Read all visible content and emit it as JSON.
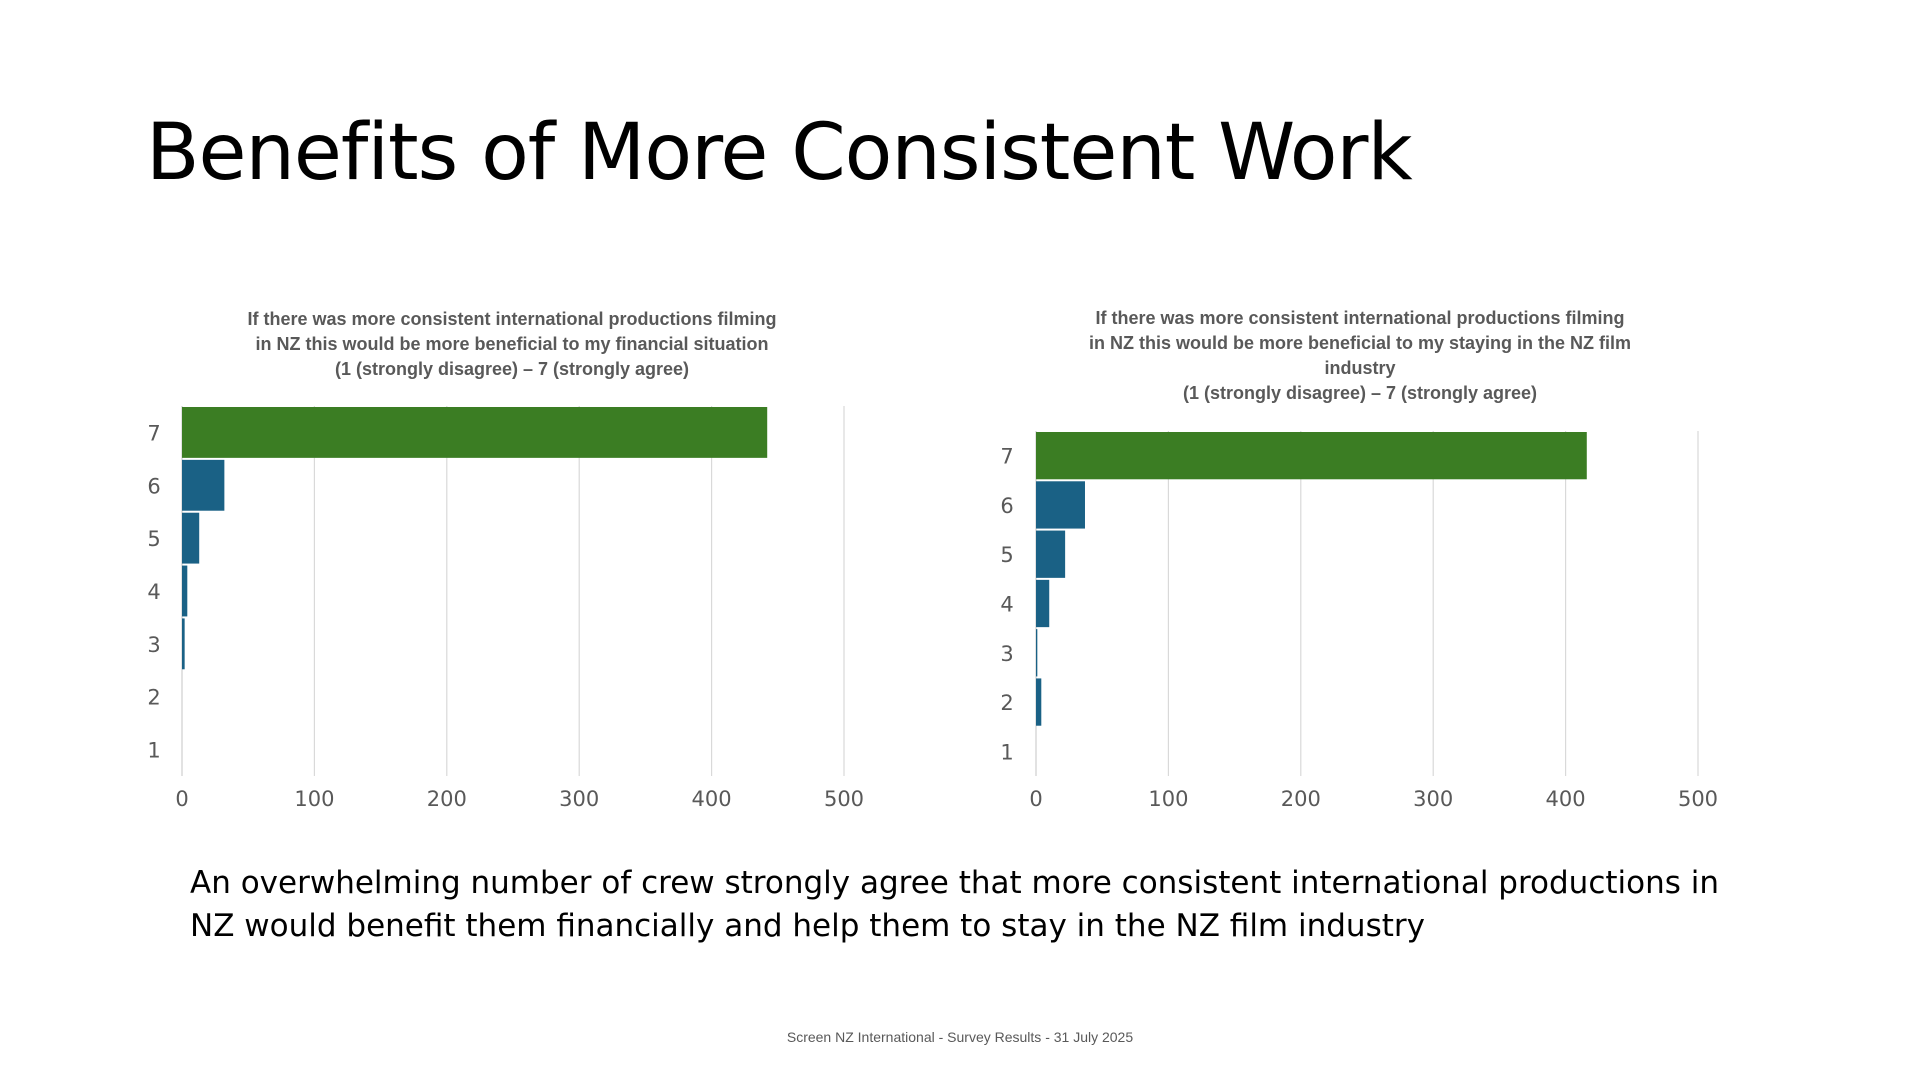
{
  "slide": {
    "title": "Benefits of More Consistent Work",
    "summary": "An overwhelming number of crew strongly agree that more consistent international productions in NZ would benefit them financially and help them to stay in the NZ film industry",
    "footer": "Screen NZ International - Survey Results - 31 July 2025"
  },
  "chart_data": [
    {
      "type": "bar",
      "orientation": "horizontal",
      "title_lines": [
        "If there was more consistent  international productions filming",
        "in NZ this would be more beneficial to my financial situation",
        "(1 (strongly disagree) – 7 (strongly agree)"
      ],
      "categories": [
        "7",
        "6",
        "5",
        "4",
        "3",
        "2",
        "1"
      ],
      "values": [
        442,
        32,
        13,
        4,
        2,
        0,
        0
      ],
      "xlim": [
        0,
        500
      ],
      "xticks": [
        "0",
        "100",
        "200",
        "300",
        "400",
        "500"
      ],
      "grid": true,
      "colors": {
        "highlight": "#3B7D23",
        "default": "#1A6185",
        "grid": "#D9D9D9",
        "text": "#595959"
      }
    },
    {
      "type": "bar",
      "orientation": "horizontal",
      "title_lines": [
        "If there was more consistent  international productions filming",
        "in NZ this would be more beneficial to my staying in the NZ film",
        "industry",
        "(1 (strongly disagree) – 7 (strongly agree)"
      ],
      "categories": [
        "7",
        "6",
        "5",
        "4",
        "3",
        "2",
        "1"
      ],
      "values": [
        416,
        37,
        22,
        10,
        1,
        4,
        0
      ],
      "xlim": [
        0,
        500
      ],
      "xticks": [
        "0",
        "100",
        "200",
        "300",
        "400",
        "500"
      ],
      "grid": true,
      "colors": {
        "highlight": "#3B7D23",
        "default": "#1A6185",
        "grid": "#D9D9D9",
        "text": "#595959"
      }
    }
  ]
}
